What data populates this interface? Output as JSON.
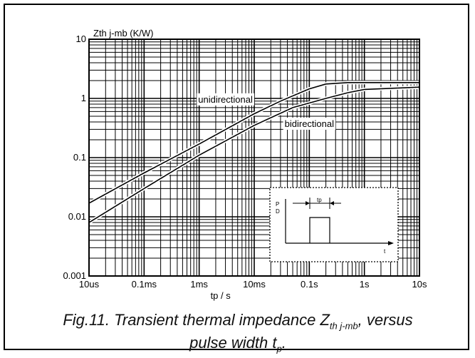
{
  "chart_data": {
    "type": "line",
    "ylabel": "Zth j-mb  (K/W)",
    "xlabel": "tp / s",
    "x_scale": "log",
    "y_scale": "log",
    "xlim": [
      "10us",
      "10s"
    ],
    "ylim": [
      0.001,
      10
    ],
    "grid": true,
    "x_tick_labels": [
      "10us",
      "0.1ms",
      "1ms",
      "10ms",
      "0.1s",
      "1s",
      "10s"
    ],
    "y_tick_labels": [
      "0.001",
      "0.01",
      "0.1",
      "1",
      "10"
    ],
    "series": [
      {
        "name": "unidirectional",
        "x": [
          "10us",
          "0.1ms",
          "1ms",
          "10ms",
          "30ms",
          "0.1s",
          "0.2s",
          "0.5s",
          "1s",
          "10s"
        ],
        "values": [
          0.017,
          0.055,
          0.17,
          0.55,
          0.9,
          1.45,
          1.75,
          1.85,
          1.85,
          1.85
        ]
      },
      {
        "name": "bidirectional",
        "x": [
          "10us",
          "0.1ms",
          "1ms",
          "10ms",
          "50ms",
          "0.2s",
          "0.5s",
          "1s",
          "10s"
        ],
        "values": [
          0.008,
          0.03,
          0.11,
          0.35,
          0.7,
          1.0,
          1.25,
          1.42,
          1.55
        ]
      }
    ],
    "inset_labels": {
      "p": "P",
      "d": "D",
      "tp": "tp",
      "t": "t"
    }
  },
  "caption": {
    "prefix": "Fig.11.  Transient thermal impedance Z",
    "sub": "th j-mb",
    "middle": ", versus",
    "line2": "pulse width t",
    "sub2": "p",
    "suffix": "."
  }
}
